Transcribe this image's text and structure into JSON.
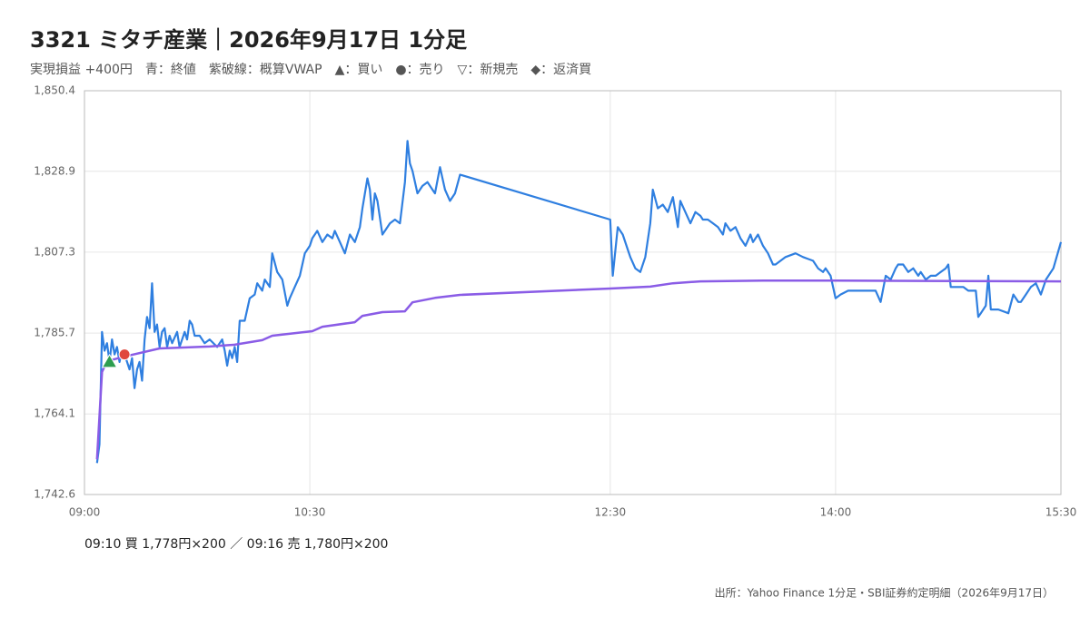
{
  "chart_data": {
    "type": "line",
    "title": "3321 ミタチ産業｜2026年9月17日 1分足",
    "subtitle": "実現損益 +400円　青：終値　紫破線：概算VWAP　▲：買い　●：売り　▽：新規売　◆：返済買",
    "note": "09:10 買 1,778円×200 ／ 09:16 売 1,780円×200",
    "source": "出所：Yahoo Finance 1分足・SBI証券約定明細（2026年9月17日）",
    "xlim": [
      "09:00",
      "15:30"
    ],
    "xticks": [
      "09:00",
      "10:30",
      "12:30",
      "14:00",
      "15:30"
    ],
    "ylim": [
      1742.6,
      1850.4
    ],
    "yticks": [
      {
        "value": 1742.6,
        "label": "1,742.6"
      },
      {
        "value": 1764.1,
        "label": "1,764.1"
      },
      {
        "value": 1785.7,
        "label": "1,785.7"
      },
      {
        "value": 1807.3,
        "label": "1,807.3"
      },
      {
        "value": 1828.9,
        "label": "1,828.9"
      },
      {
        "value": 1850.4,
        "label": "1,850.4"
      }
    ],
    "grid": true,
    "series": [
      {
        "color": "#2f7fe0",
        "x": [
          "09:05",
          "09:06",
          "09:07",
          "09:08",
          "09:09",
          "09:10",
          "09:11",
          "09:12",
          "09:13",
          "09:14",
          "09:15",
          "09:16",
          "09:17",
          "09:18",
          "09:19",
          "09:20",
          "09:21",
          "09:22",
          "09:23",
          "09:24",
          "09:25",
          "09:26",
          "09:27",
          "09:28",
          "09:29",
          "09:30",
          "09:31",
          "09:32",
          "09:33",
          "09:34",
          "09:35",
          "09:37",
          "09:38",
          "09:40",
          "09:41",
          "09:42",
          "09:43",
          "09:44",
          "09:46",
          "09:48",
          "09:50",
          "09:53",
          "09:55",
          "09:56",
          "09:57",
          "09:58",
          "09:59",
          "10:00",
          "10:01",
          "10:02",
          "10:04",
          "10:06",
          "10:08",
          "10:09",
          "10:11",
          "10:12",
          "10:14",
          "10:15",
          "10:17",
          "10:19",
          "10:21",
          "10:22",
          "10:24",
          "10:26",
          "10:28",
          "10:30",
          "10:31",
          "10:33",
          "10:35",
          "10:37",
          "10:39",
          "10:40",
          "10:42",
          "10:44",
          "10:46",
          "10:48",
          "10:50",
          "10:51",
          "10:53",
          "10:54",
          "10:55",
          "10:56",
          "10:57",
          "10:59",
          "11:00",
          "11:02",
          "11:04",
          "11:06",
          "11:08",
          "11:09",
          "11:10",
          "11:11",
          "11:13",
          "11:15",
          "11:17",
          "11:19",
          "11:20",
          "11:22",
          "11:24",
          "11:26",
          "11:28",
          "11:30",
          "12:30",
          "12:31",
          "12:33",
          "12:35",
          "12:37",
          "12:38",
          "12:40",
          "12:42",
          "12:44",
          "12:46",
          "12:47",
          "12:49",
          "12:51",
          "12:53",
          "12:55",
          "12:57",
          "12:58",
          "13:00",
          "13:02",
          "13:04",
          "13:06",
          "13:07",
          "13:09",
          "13:11",
          "13:13",
          "13:15",
          "13:16",
          "13:18",
          "13:20",
          "13:22",
          "13:24",
          "13:26",
          "13:27",
          "13:29",
          "13:31",
          "13:33",
          "13:35",
          "13:36",
          "13:38",
          "13:40",
          "13:44",
          "13:47",
          "13:51",
          "13:53",
          "13:55",
          "13:56",
          "13:58",
          "14:00",
          "14:02",
          "14:05",
          "14:13",
          "14:16",
          "14:18",
          "14:20",
          "14:22",
          "14:24",
          "14:25",
          "14:27",
          "14:29",
          "14:31",
          "14:33",
          "14:34",
          "14:36",
          "14:38",
          "14:40",
          "14:42",
          "14:44",
          "14:45",
          "14:46",
          "14:49",
          "14:51",
          "14:53",
          "14:56",
          "14:57",
          "14:58",
          "15:00",
          "15:01",
          "15:02",
          "15:05",
          "15:09",
          "15:11",
          "15:13",
          "15:14",
          "15:16",
          "15:18",
          "15:20",
          "15:22",
          "15:24",
          "15:27",
          "15:30"
        ],
        "values": [
          1751,
          1756,
          1786,
          1781,
          1783,
          1778,
          1784,
          1780,
          1782,
          1778,
          1781,
          1780,
          1778,
          1776,
          1779,
          1771,
          1776,
          1778,
          1773,
          1784,
          1790,
          1787,
          1799,
          1786,
          1788,
          1782,
          1786,
          1787,
          1782,
          1785,
          1783,
          1786,
          1782,
          1786,
          1784,
          1789,
          1788,
          1785,
          1785,
          1783,
          1784,
          1782,
          1784,
          1781,
          1777,
          1781,
          1779,
          1782,
          1778,
          1789,
          1789,
          1795,
          1796,
          1799,
          1797,
          1800,
          1798,
          1807,
          1802,
          1800,
          1793,
          1795,
          1798,
          1801,
          1807,
          1809,
          1811,
          1813,
          1810,
          1812,
          1811,
          1813,
          1810,
          1807,
          1812,
          1810,
          1814,
          1819,
          1827,
          1824,
          1816,
          1823,
          1821,
          1812,
          1813,
          1815,
          1816,
          1815,
          1826,
          1837,
          1831,
          1829,
          1823,
          1825,
          1826,
          1824,
          1823,
          1830,
          1824,
          1821,
          1823,
          1828,
          1816,
          1801,
          1814,
          1812,
          1808,
          1806,
          1803,
          1802,
          1806,
          1815,
          1824,
          1819,
          1820,
          1818,
          1822,
          1814,
          1821,
          1818,
          1815,
          1818,
          1817,
          1816,
          1816,
          1815,
          1814,
          1812,
          1815,
          1813,
          1814,
          1811,
          1809,
          1812,
          1810,
          1812,
          1809,
          1807,
          1804,
          1804,
          1805,
          1806,
          1807,
          1806,
          1805,
          1803,
          1802,
          1803,
          1801,
          1795,
          1796,
          1797,
          1797,
          1797,
          1794,
          1801,
          1800,
          1803,
          1804,
          1804,
          1802,
          1803,
          1801,
          1802,
          1800,
          1801,
          1801,
          1802,
          1803,
          1804,
          1798,
          1798,
          1798,
          1797,
          1797,
          1790,
          1791,
          1793,
          1801,
          1792,
          1792,
          1791,
          1796,
          1794,
          1794,
          1796,
          1798,
          1799,
          1796,
          1800,
          1803,
          1810
        ]
      },
      {
        "color": "#8a5ce6",
        "x": [
          "09:05",
          "09:07",
          "09:09",
          "09:17",
          "09:30",
          "09:50",
          "10:00",
          "10:11",
          "10:15",
          "10:31",
          "10:35",
          "10:48",
          "10:51",
          "10:59",
          "11:08",
          "11:11",
          "11:20",
          "11:30",
          "12:30",
          "12:46",
          "12:55",
          "13:06",
          "13:31",
          "14:00",
          "15:30"
        ],
        "values": [
          1752.0,
          1775.3,
          1778.2,
          1779.6,
          1781.6,
          1782.1,
          1782.6,
          1783.8,
          1785.0,
          1786.2,
          1787.4,
          1788.6,
          1790.3,
          1791.3,
          1791.5,
          1793.9,
          1795.1,
          1795.9,
          1797.6,
          1798.1,
          1799.0,
          1799.5,
          1799.7,
          1799.7,
          1799.5
        ]
      }
    ],
    "markers": [
      {
        "x": "09:10",
        "value": 1778,
        "shape": "triangle",
        "color": "#2e9e4f"
      },
      {
        "x": "09:16",
        "value": 1780,
        "shape": "circle",
        "color": "#e0473c"
      }
    ]
  }
}
